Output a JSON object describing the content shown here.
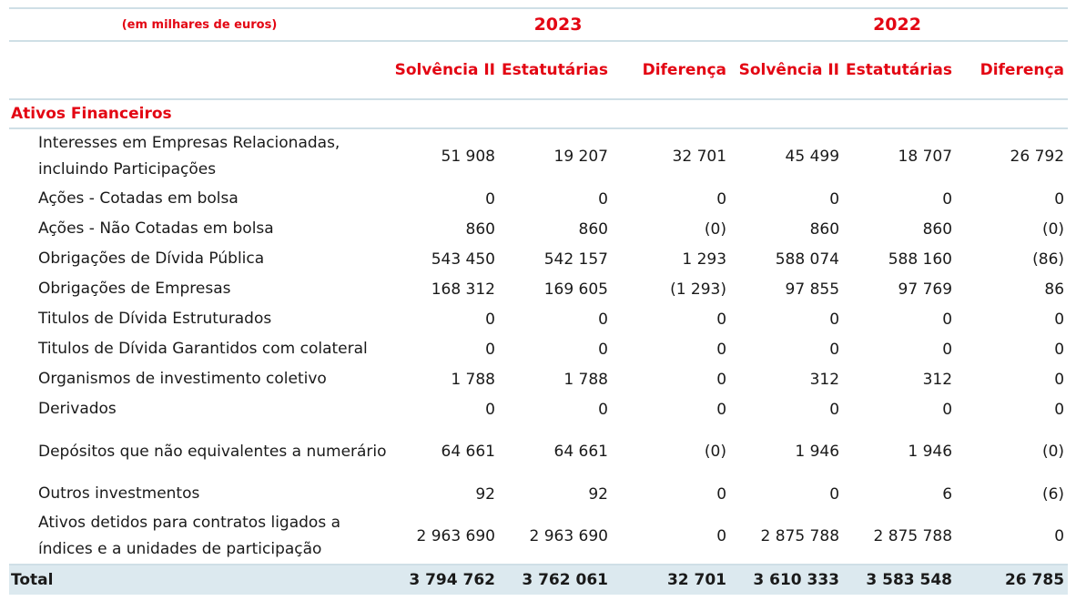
{
  "header": {
    "units": "(em milhares de euros)",
    "year_1": "2023",
    "year_2": "2022",
    "columns": [
      "Solvência II",
      "Estatutárias",
      "Diferença",
      "Solvência II",
      "Estatutárias",
      "Diferença"
    ]
  },
  "section_title": "Ativos Financeiros",
  "rows": [
    {
      "label": "Interesses em Empresas Relacionadas, incluindo Participações",
      "values": [
        "51 908",
        "19 207",
        "32 701",
        "45 499",
        "18 707",
        "26 792"
      ]
    },
    {
      "label": "Ações - Cotadas em bolsa",
      "values": [
        "0",
        "0",
        "0",
        "0",
        "0",
        "0"
      ]
    },
    {
      "label": "Ações - Não Cotadas em bolsa",
      "values": [
        "860",
        "860",
        "(0)",
        "860",
        "860",
        "(0)"
      ]
    },
    {
      "label": "Obrigações de Dívida Pública",
      "values": [
        "543 450",
        "542 157",
        "1 293",
        "588 074",
        "588 160",
        "(86)"
      ]
    },
    {
      "label": "Obrigações de Empresas",
      "values": [
        "168 312",
        "169 605",
        "(1 293)",
        "97 855",
        "97 769",
        "86"
      ]
    },
    {
      "label": "Titulos de Dívida Estruturados",
      "values": [
        "0",
        "0",
        "0",
        "0",
        "0",
        "0"
      ]
    },
    {
      "label": "Titulos de Dívida Garantidos com colateral",
      "values": [
        "0",
        "0",
        "0",
        "0",
        "0",
        "0"
      ]
    },
    {
      "label": "Organismos de investimento coletivo",
      "values": [
        "1 788",
        "1 788",
        "0",
        "312",
        "312",
        "0"
      ]
    },
    {
      "label": "Derivados",
      "values": [
        "0",
        "0",
        "0",
        "0",
        "0",
        "0"
      ]
    },
    {
      "label": "Depósitos que não equivalentes a numerário",
      "values": [
        "64 661",
        "64 661",
        "(0)",
        "1 946",
        "1 946",
        "(0)"
      ]
    },
    {
      "label": "Outros investmentos",
      "values": [
        "92",
        "92",
        "0",
        "0",
        "6",
        "(6)"
      ]
    },
    {
      "label": "Ativos detidos para contratos ligados a índices e a unidades de participação",
      "values": [
        "2 963 690",
        "2 963 690",
        "0",
        "2 875 788",
        "2 875 788",
        "0"
      ]
    }
  ],
  "total": {
    "label": "Total",
    "values": [
      "3 794 762",
      "3 762 061",
      "32 701",
      "3 610 333",
      "3 583 548",
      "26 785"
    ]
  }
}
